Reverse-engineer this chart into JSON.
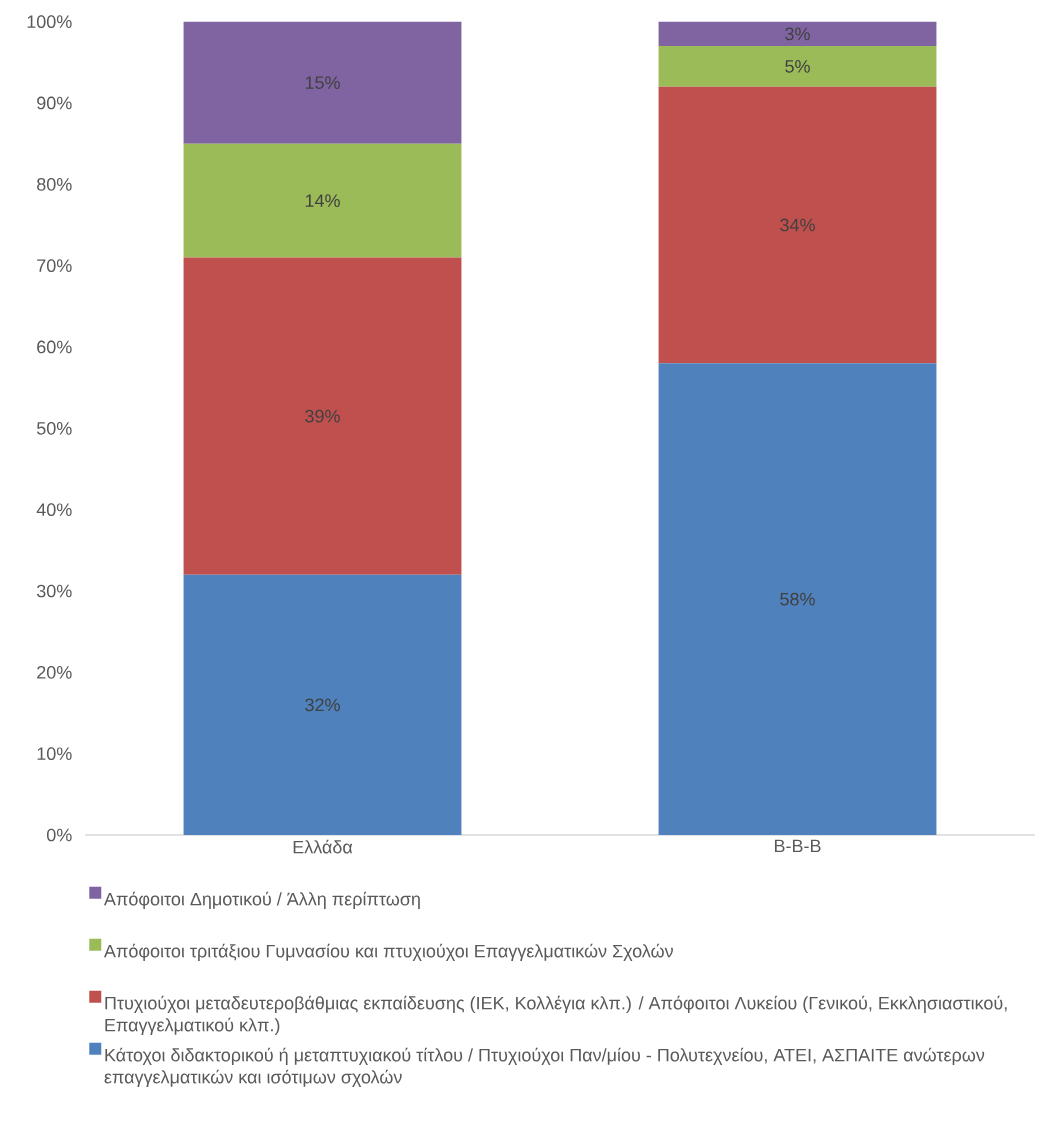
{
  "chart_data": {
    "type": "bar",
    "stacked": true,
    "categories": [
      "Ελλάδα",
      "Β-Β-Β"
    ],
    "series": [
      {
        "name": "Κάτοχοι διδακτορικού ή μεταπτυχιακού τίτλου  / Πτυχιούχοι Παν/μίου - Πολυτεχνείου, ΑΤΕΙ, ΑΣΠΑΙΤΕ ανώτερων επαγγελματικών και ισότιμων σχολών",
        "color": "#4f81bd",
        "values": [
          32,
          58
        ],
        "value_labels": [
          "32%",
          "58%"
        ]
      },
      {
        "name": "Πτυχιούχοι μεταδευτεροβάθμιας εκπαίδευσης (ΙΕΚ, Κολλέγια κλπ.) / Απόφοιτοι Λυκείου (Γενικού, Εκκλησιαστικού, Επαγγελματικού κλπ.)",
        "color": "#c0504d",
        "values": [
          39,
          34
        ],
        "value_labels": [
          "39%",
          "34%"
        ]
      },
      {
        "name": "Απόφοιτοι τριτάξιου Γυμνασίου και πτυχιούχοι Επαγγελματικών Σχολών",
        "color": "#9bbb59",
        "values": [
          14,
          5
        ],
        "value_labels": [
          "14%",
          "5%"
        ]
      },
      {
        "name": "Απόφοιτοι Δημοτικού / Άλλη περίπτωση",
        "color": "#8064a2",
        "values": [
          15,
          3
        ],
        "value_labels": [
          "15%",
          "3%"
        ]
      }
    ],
    "ylim": [
      0,
      100
    ],
    "yticks": [
      {
        "value": 0,
        "label": "0%"
      },
      {
        "value": 10,
        "label": "10%"
      },
      {
        "value": 20,
        "label": "20%"
      },
      {
        "value": 30,
        "label": "30%"
      },
      {
        "value": 40,
        "label": "40%"
      },
      {
        "value": 50,
        "label": "50%"
      },
      {
        "value": 60,
        "label": "60%"
      },
      {
        "value": 70,
        "label": "70%"
      },
      {
        "value": 80,
        "label": "80%"
      },
      {
        "value": 90,
        "label": "90%"
      },
      {
        "value": 100,
        "label": "100%"
      }
    ],
    "grid": false,
    "legend": "bottom"
  }
}
